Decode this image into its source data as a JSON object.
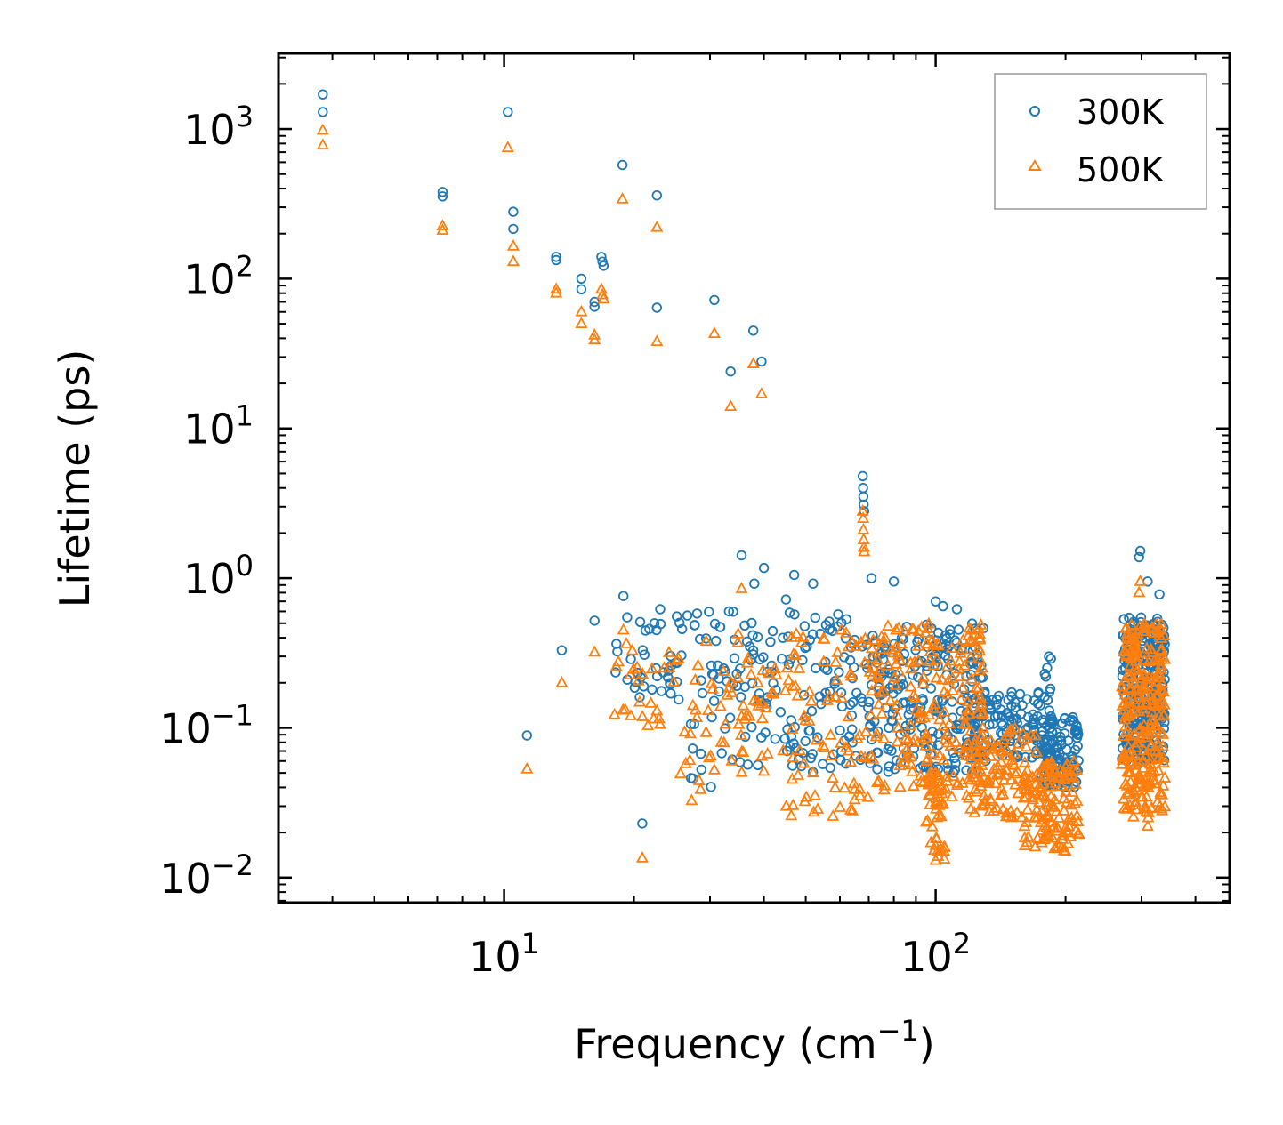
{
  "chart_data": {
    "type": "scatter",
    "xscale": "log",
    "yscale": "log",
    "xlabel": "Frequency (cm",
    "xlabel_exp": "−1",
    "xlabel_suffix": ")",
    "ylabel": "Lifetime (ps)",
    "xlim": [
      3.0,
      480
    ],
    "ylim": [
      0.0068,
      3200
    ],
    "x_ticks": [
      {
        "value": 10,
        "base": "10",
        "exp": "1"
      },
      {
        "value": 100,
        "base": "10",
        "exp": "2"
      }
    ],
    "y_ticks": [
      {
        "value": 0.01,
        "base": "10",
        "exp": "−2"
      },
      {
        "value": 0.1,
        "base": "10",
        "exp": "−1"
      },
      {
        "value": 1,
        "base": "10",
        "exp": "0"
      },
      {
        "value": 10,
        "base": "10",
        "exp": "1"
      },
      {
        "value": 100,
        "base": "10",
        "exp": "2"
      },
      {
        "value": 1000,
        "base": "10",
        "exp": "3"
      }
    ],
    "legend": {
      "placement": "top-right"
    },
    "series": [
      {
        "name": "300K",
        "marker": "circle",
        "color": "#1f77b4",
        "explicit_points": [
          [
            3.8,
            1700
          ],
          [
            3.8,
            1300
          ],
          [
            7.2,
            380
          ],
          [
            7.2,
            355
          ],
          [
            10.2,
            1300
          ],
          [
            10.5,
            280
          ],
          [
            10.5,
            215
          ],
          [
            13.2,
            140
          ],
          [
            13.2,
            133
          ],
          [
            15.1,
            100
          ],
          [
            15.1,
            85
          ],
          [
            16.2,
            70
          ],
          [
            16.2,
            65
          ],
          [
            16.8,
            140
          ],
          [
            16.9,
            130
          ],
          [
            17.0,
            122
          ],
          [
            18.8,
            575
          ],
          [
            22.6,
            360
          ],
          [
            22.6,
            64
          ],
          [
            30.7,
            72
          ],
          [
            33.5,
            24
          ],
          [
            37.8,
            45
          ],
          [
            39.5,
            28
          ],
          [
            11.3,
            0.089
          ],
          [
            13.6,
            0.33
          ],
          [
            16.2,
            0.52
          ],
          [
            18.9,
            0.76
          ],
          [
            20.9,
            0.023
          ],
          [
            22.3,
            0.5
          ],
          [
            23.0,
            0.62
          ],
          [
            28.0,
            0.58
          ],
          [
            33.2,
            0.6
          ],
          [
            35.5,
            1.42
          ],
          [
            38.0,
            0.92
          ],
          [
            40.0,
            1.17
          ],
          [
            45.0,
            0.72
          ],
          [
            47.0,
            1.05
          ],
          [
            52.0,
            0.92
          ],
          [
            67.8,
            4.8
          ],
          [
            67.9,
            4.0
          ],
          [
            68.0,
            3.5
          ],
          [
            68.1,
            3.1
          ],
          [
            68.3,
            2.8
          ],
          [
            71.0,
            1.0
          ],
          [
            80.0,
            0.95
          ],
          [
            100.0,
            0.7
          ],
          [
            104.0,
            0.65
          ],
          [
            112.0,
            0.62
          ],
          [
            298.0,
            1.52
          ],
          [
            296.0,
            1.38
          ],
          [
            310.0,
            0.95
          ],
          [
            330.0,
            0.78
          ],
          [
            183.0,
            0.3
          ],
          [
            185.0,
            0.29
          ],
          [
            180.0,
            0.22
          ]
        ],
        "clusters": [
          {
            "x": [
              18,
              40
            ],
            "y": [
              0.15,
              0.6
            ],
            "n": 60
          },
          {
            "x": [
              18,
              28
            ],
            "y": [
              0.16,
              0.25
            ],
            "n": 12
          },
          {
            "x": [
              26,
              40
            ],
            "y": [
              0.04,
              0.12
            ],
            "n": 18
          },
          {
            "x": [
              35,
              45
            ],
            "y": [
              0.08,
              0.45
            ],
            "n": 30
          },
          {
            "x": [
              45,
              70
            ],
            "y": [
              0.05,
              0.6
            ],
            "n": 90
          },
          {
            "x": [
              70,
              130
            ],
            "y": [
              0.05,
              0.5
            ],
            "n": 230
          },
          {
            "x": [
              120,
              175
            ],
            "y": [
              0.06,
              0.18
            ],
            "n": 110
          },
          {
            "x": [
              175,
              215
            ],
            "y": [
              0.04,
              0.12
            ],
            "n": 120
          },
          {
            "x": [
              178,
              186
            ],
            "y": [
              0.06,
              0.3
            ],
            "n": 20
          },
          {
            "x": [
              270,
              340
            ],
            "y": [
              0.06,
              0.55
            ],
            "n": 280
          }
        ]
      },
      {
        "name": "500K",
        "marker": "triangle",
        "color": "#ff7f0e",
        "explicit_points": [
          [
            3.8,
            980
          ],
          [
            3.8,
            780
          ],
          [
            7.2,
            225
          ],
          [
            7.2,
            210
          ],
          [
            10.2,
            750
          ],
          [
            10.5,
            165
          ],
          [
            10.5,
            130
          ],
          [
            13.2,
            85
          ],
          [
            13.2,
            80
          ],
          [
            15.1,
            60
          ],
          [
            15.1,
            50
          ],
          [
            16.2,
            42
          ],
          [
            16.2,
            39
          ],
          [
            16.8,
            85
          ],
          [
            16.9,
            78
          ],
          [
            17.0,
            73
          ],
          [
            18.8,
            340
          ],
          [
            22.6,
            220
          ],
          [
            22.6,
            38
          ],
          [
            30.7,
            43
          ],
          [
            33.5,
            14
          ],
          [
            37.8,
            27
          ],
          [
            39.5,
            17
          ],
          [
            11.3,
            0.053
          ],
          [
            13.6,
            0.2
          ],
          [
            16.2,
            0.32
          ],
          [
            18.9,
            0.45
          ],
          [
            20.9,
            0.0135
          ],
          [
            35.5,
            0.85
          ],
          [
            67.8,
            2.8
          ],
          [
            67.9,
            2.5
          ],
          [
            68.0,
            2.1
          ],
          [
            68.1,
            1.8
          ],
          [
            68.2,
            1.6
          ],
          [
            68.3,
            1.5
          ],
          [
            298.0,
            0.95
          ],
          [
            296.0,
            0.8
          ],
          [
            100.0,
            0.013
          ],
          [
            101.0,
            0.015
          ],
          [
            310.0,
            0.022
          ],
          [
            170.0,
            0.016
          ],
          [
            200.0,
            0.015
          ]
        ],
        "clusters": [
          {
            "x": [
              18,
              40
            ],
            "y": [
              0.1,
              0.45
            ],
            "n": 45
          },
          {
            "x": [
              18,
              30
            ],
            "y": [
              0.09,
              0.14
            ],
            "n": 10
          },
          {
            "x": [
              25,
              40
            ],
            "y": [
              0.03,
              0.08
            ],
            "n": 15
          },
          {
            "x": [
              35,
              45
            ],
            "y": [
              0.05,
              0.25
            ],
            "n": 25
          },
          {
            "x": [
              45,
              70
            ],
            "y": [
              0.025,
              0.45
            ],
            "n": 80
          },
          {
            "x": [
              70,
              130
            ],
            "y": [
              0.03,
              0.5
            ],
            "n": 220
          },
          {
            "x": [
              95,
              105
            ],
            "y": [
              0.013,
              0.05
            ],
            "n": 40
          },
          {
            "x": [
              120,
              175
            ],
            "y": [
              0.025,
              0.1
            ],
            "n": 100
          },
          {
            "x": [
              160,
              178
            ],
            "y": [
              0.016,
              0.05
            ],
            "n": 30
          },
          {
            "x": [
              175,
              215
            ],
            "y": [
              0.015,
              0.06
            ],
            "n": 100
          },
          {
            "x": [
              270,
              340
            ],
            "y": [
              0.025,
              0.5
            ],
            "n": 260
          }
        ]
      }
    ]
  }
}
